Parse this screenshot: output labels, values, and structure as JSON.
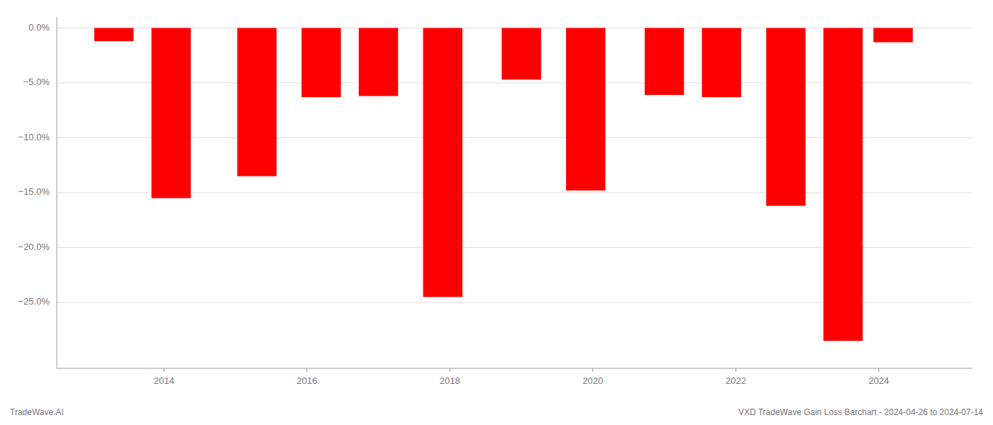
{
  "chart_data": {
    "type": "bar",
    "title": "VXD TradeWave Gain Loss Barchart - 2024-04-26 to 2024-07-14",
    "annotations": [
      "TradeWave.AI"
    ],
    "x": [
      2013.3,
      2014.1,
      2015.3,
      2016.2,
      2017.0,
      2017.9,
      2019.0,
      2019.9,
      2021.0,
      2021.8,
      2022.7,
      2023.5,
      2024.2
    ],
    "values": [
      -1.2,
      -15.5,
      -13.5,
      -6.3,
      -6.2,
      -24.5,
      -4.7,
      -14.8,
      -6.1,
      -6.3,
      -16.2,
      -28.5,
      -1.3
    ],
    "color": "#ff0000",
    "xlim": [
      2012.5,
      2025.3
    ],
    "xticks": [
      2014,
      2016,
      2018,
      2020,
      2022,
      2024
    ],
    "ylim": [
      -31,
      1.0
    ],
    "yticks": [
      {
        "value": 0.0,
        "label": "0.0%"
      },
      {
        "value": -5.0,
        "label": "−5.0%"
      },
      {
        "value": -10.0,
        "label": "−10.0%"
      },
      {
        "value": -15.0,
        "label": "−15.0%"
      },
      {
        "value": -20.0,
        "label": "−20.0%"
      },
      {
        "value": -25.0,
        "label": "−25.0%"
      }
    ],
    "grid": true
  }
}
